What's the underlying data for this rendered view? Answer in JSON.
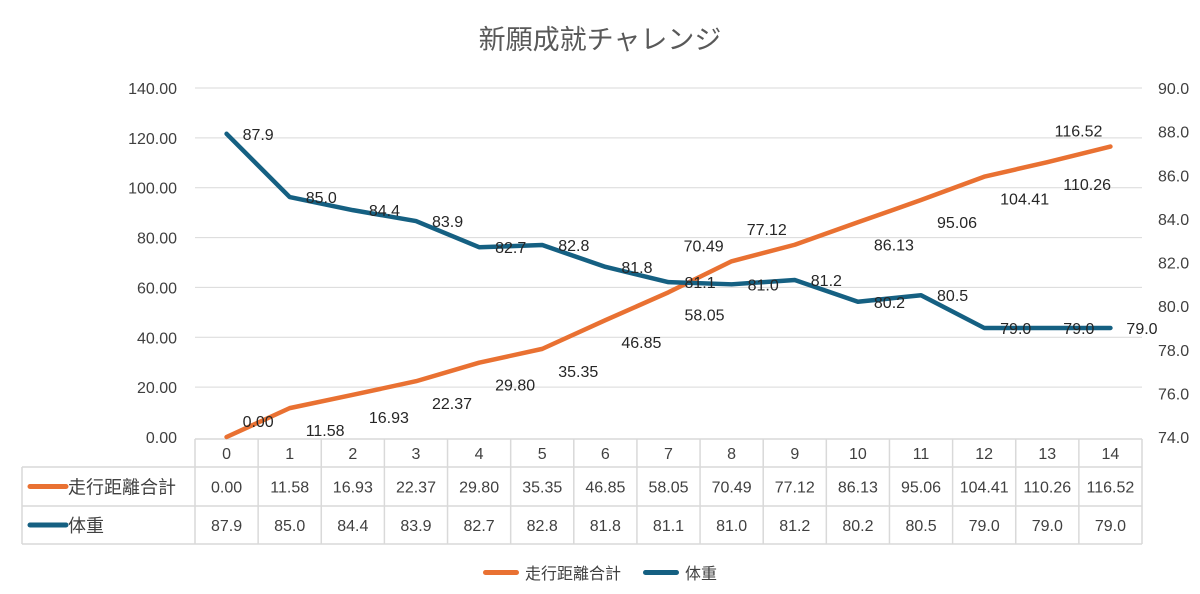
{
  "chart_data": {
    "type": "line",
    "title": "新願成就チャレンジ",
    "categories": [
      "0",
      "1",
      "2",
      "3",
      "4",
      "5",
      "6",
      "7",
      "8",
      "9",
      "10",
      "11",
      "12",
      "13",
      "14"
    ],
    "series": [
      {
        "name": "走行距離合計",
        "axis": "left",
        "color": "#E97132",
        "values": [
          0.0,
          11.58,
          16.93,
          22.37,
          29.8,
          35.35,
          46.85,
          58.05,
          70.49,
          77.12,
          86.13,
          95.06,
          104.41,
          110.26,
          116.52
        ],
        "labels": [
          "0.00",
          "11.58",
          "16.93",
          "22.37",
          "29.80",
          "35.35",
          "46.85",
          "58.05",
          "70.49",
          "77.12",
          "86.13",
          "95.06",
          "104.41",
          "110.26",
          "116.52"
        ]
      },
      {
        "name": "体重",
        "axis": "right",
        "color": "#156082",
        "values": [
          87.9,
          85.0,
          84.4,
          83.9,
          82.7,
          82.8,
          81.8,
          81.1,
          81.0,
          81.2,
          80.2,
          80.5,
          79.0,
          79.0,
          79.0
        ],
        "labels": [
          "87.9",
          "85.0",
          "84.4",
          "83.9",
          "82.7",
          "82.8",
          "81.8",
          "81.1",
          "81.0",
          "81.2",
          "80.2",
          "80.5",
          "79.0",
          "79.0",
          "79.0"
        ]
      }
    ],
    "y_left": {
      "range": [
        0,
        140
      ],
      "ticks": [
        "0.00",
        "20.00",
        "40.00",
        "60.00",
        "80.00",
        "100.00",
        "120.00",
        "140.00"
      ]
    },
    "y_right": {
      "range": [
        74,
        90
      ],
      "ticks": [
        "74.0",
        "76.0",
        "78.0",
        "80.0",
        "82.0",
        "84.0",
        "86.0",
        "88.0",
        "90.0"
      ]
    },
    "grid": true,
    "data_table": true,
    "legend_position": "bottom"
  }
}
